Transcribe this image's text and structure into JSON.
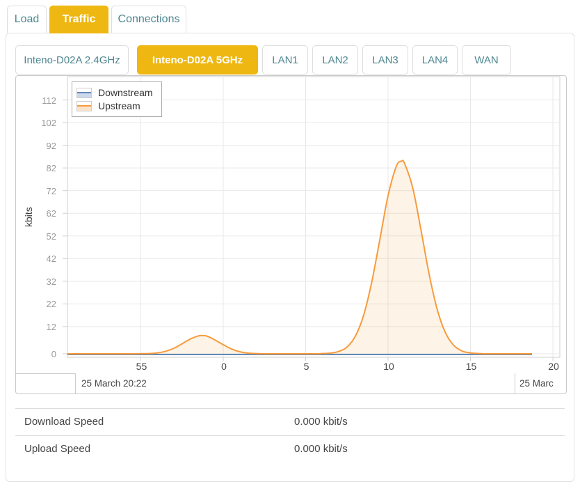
{
  "colors": {
    "accent_yellow": "#eeb711",
    "tab_teal": "#4d8791",
    "panel_border": "#e2e2e2",
    "chart_border": "#c9c9c9",
    "plot_border": "#cfcfcf",
    "gridline": "#e8e8e8",
    "tick_mark": "#cfcfcf",
    "downstream_line": "#6388b9",
    "downstream_fill": "#ccd9ec",
    "upstream_line": "#f79b3b",
    "upstream_fill": "rgba(247,155,59,0.12)"
  },
  "tabs": {
    "load": "Load",
    "traffic": "Traffic",
    "connections": "Connections"
  },
  "subtabs": {
    "wifi24": "Inteno-D02A 2.4GHz",
    "wifi5": "Inteno-D02A 5GHz",
    "lan1": "LAN1",
    "lan2": "LAN2",
    "lan3": "LAN3",
    "lan4": "LAN4",
    "wan": "WAN"
  },
  "chart_data": {
    "type": "area",
    "title": "",
    "xlabel": "",
    "ylabel": "kbits",
    "grid": true,
    "y_ticks": [
      0,
      12,
      22,
      32,
      42,
      52,
      62,
      72,
      82,
      92,
      102,
      112
    ],
    "x_ticks": [
      {
        "t": -5,
        "label": "55"
      },
      {
        "t": 0,
        "label": "0"
      },
      {
        "t": 5,
        "label": "5"
      },
      {
        "t": 10,
        "label": "10"
      },
      {
        "t": 15,
        "label": "15"
      },
      {
        "t": 20,
        "label": "20"
      }
    ],
    "x_unit": "minutes past the hour",
    "xlim": [
      -9.45,
      20.42
    ],
    "ylim": [
      -1.55,
      122.3
    ],
    "date_labels": [
      "25 March 20:22",
      "25 Marc"
    ],
    "legend": {
      "position": "top-left",
      "entries": [
        {
          "name": "Downstream",
          "line": "#6388b9",
          "fill": "#ccd9ec"
        },
        {
          "name": "Upstream",
          "line": "#f79b3b",
          "fill": "#fbe3cb"
        }
      ]
    },
    "series": [
      {
        "name": "Downstream",
        "points": [
          [
            -9.45,
            0
          ],
          [
            18.73,
            0
          ]
        ]
      },
      {
        "name": "Upstream",
        "points": [
          [
            -9.45,
            0
          ],
          [
            -6,
            0
          ],
          [
            -5.5,
            0
          ],
          [
            -5,
            0.05
          ],
          [
            -4.5,
            0.1
          ],
          [
            -4,
            0.4
          ],
          [
            -3.5,
            1.1
          ],
          [
            -3,
            2.4
          ],
          [
            -2.5,
            4.4
          ],
          [
            -2,
            6.5
          ],
          [
            -1.5,
            7.9
          ],
          [
            -1.2,
            8
          ],
          [
            -1,
            7.8
          ],
          [
            -0.5,
            6.1
          ],
          [
            0,
            4
          ],
          [
            0.5,
            2.1
          ],
          [
            1,
            0.9
          ],
          [
            1.5,
            0.3
          ],
          [
            2,
            0.1
          ],
          [
            2.6,
            0
          ],
          [
            4,
            0
          ],
          [
            5.5,
            0
          ],
          [
            6,
            0.1
          ],
          [
            6.5,
            0.3
          ],
          [
            7,
            1
          ],
          [
            7.5,
            2.9
          ],
          [
            8,
            7.6
          ],
          [
            8.5,
            16.6
          ],
          [
            9,
            31.3
          ],
          [
            9.5,
            50.4
          ],
          [
            10,
            69.8
          ],
          [
            10.5,
            82.7
          ],
          [
            10.8,
            85
          ],
          [
            11,
            84
          ],
          [
            11.5,
            73.1
          ],
          [
            12,
            54.5
          ],
          [
            12.5,
            34.8
          ],
          [
            13,
            19.1
          ],
          [
            13.5,
            9
          ],
          [
            14,
            3.6
          ],
          [
            14.5,
            1.2
          ],
          [
            15,
            0.4
          ],
          [
            15.5,
            0.1
          ],
          [
            16,
            0
          ],
          [
            17,
            0
          ],
          [
            18.73,
            0
          ]
        ]
      }
    ]
  },
  "stats": {
    "rows": [
      {
        "label": "Download Speed",
        "value": "0.000 kbit/s"
      },
      {
        "label": "Upload Speed",
        "value": "0.000 kbit/s"
      }
    ]
  }
}
